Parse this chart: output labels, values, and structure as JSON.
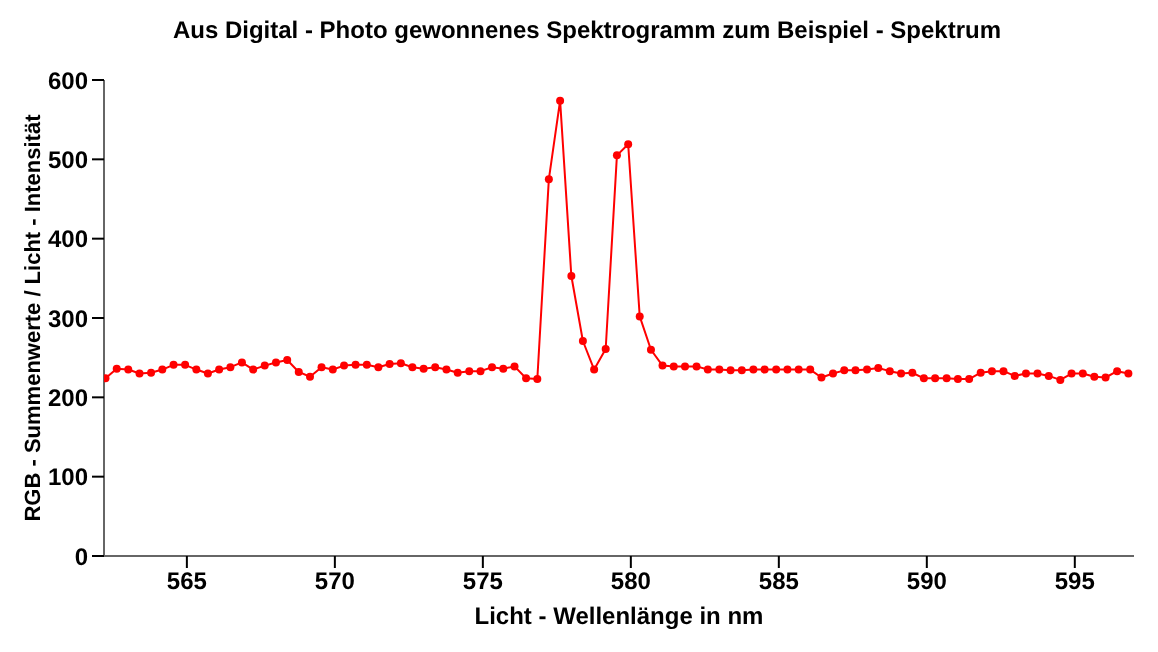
{
  "chart_data": {
    "type": "line",
    "title": "Aus Digital - Photo gewonnenes Spektrogramm zum Beispiel - Spektrum",
    "xlabel": "Licht  -  Wellenlänge  in  nm",
    "ylabel": "RGB - Summenwerte / Licht - Intensität",
    "x": [
      562.25,
      562.63,
      563.02,
      563.4,
      563.79,
      564.17,
      564.55,
      564.94,
      565.32,
      565.71,
      566.09,
      566.47,
      566.86,
      567.24,
      567.63,
      568.01,
      568.39,
      568.78,
      569.16,
      569.55,
      569.93,
      570.31,
      570.7,
      571.08,
      571.47,
      571.85,
      572.23,
      572.62,
      573.0,
      573.39,
      573.77,
      574.15,
      574.54,
      574.92,
      575.31,
      575.69,
      576.07,
      576.46,
      576.84,
      577.23,
      577.61,
      577.99,
      578.38,
      578.76,
      579.15,
      579.53,
      579.91,
      580.3,
      580.68,
      581.07,
      581.45,
      581.83,
      582.22,
      582.6,
      582.99,
      583.37,
      583.75,
      584.14,
      584.52,
      584.91,
      585.29,
      585.67,
      586.06,
      586.44,
      586.83,
      587.21,
      587.59,
      587.98,
      588.36,
      588.75,
      589.13,
      589.51,
      589.9,
      590.28,
      590.67,
      591.05,
      591.43,
      591.82,
      592.2,
      592.59,
      592.97,
      593.35,
      593.74,
      594.12,
      594.51,
      594.89,
      595.27,
      595.66,
      596.04,
      596.43,
      596.81
    ],
    "series": [
      {
        "color": "#ff0000",
        "values": [
          224,
          236,
          235,
          230,
          231,
          235,
          241,
          241,
          235,
          230,
          235,
          238,
          244,
          235,
          240,
          244,
          247,
          232,
          226,
          238,
          235,
          240,
          241,
          241,
          238,
          242,
          243,
          238,
          236,
          238,
          235,
          231,
          233,
          233,
          238,
          236,
          239,
          224,
          223,
          475,
          574,
          353,
          271,
          235,
          261,
          505,
          519,
          302,
          260,
          240,
          239,
          239,
          239,
          235,
          235,
          234,
          234,
          235,
          235,
          235,
          235,
          235,
          235,
          225,
          230,
          234,
          234,
          235,
          237,
          233,
          230,
          231,
          224,
          224,
          224,
          223,
          223,
          231,
          233,
          233,
          227,
          230,
          230,
          227,
          222,
          230,
          230,
          226,
          225,
          233,
          230
        ]
      }
    ],
    "xlim": [
      562.2,
      597
    ],
    "xticks": [
      565,
      570,
      575,
      580,
      585,
      590,
      595
    ],
    "ylim": [
      0,
      600
    ],
    "yticks": [
      0,
      100,
      200,
      300,
      400,
      500,
      600
    ],
    "grid": false,
    "marker": "circle",
    "line_style": "solid"
  }
}
